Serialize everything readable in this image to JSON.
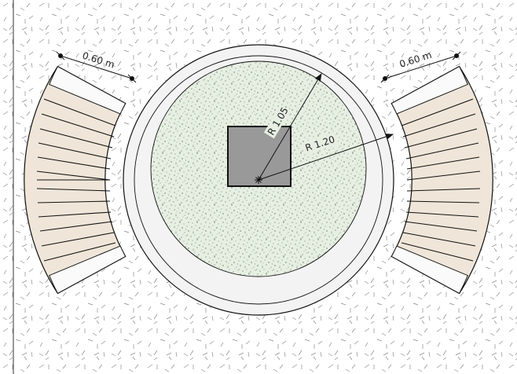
{
  "drawing": {
    "dimensions": {
      "width_left": "0.60 m",
      "width_right": "0.60 m",
      "inner_radius": "R 1.05",
      "outer_radius": "R 1.20"
    },
    "colors": {
      "background": "#ffffff",
      "ground_hatch": "#8a8a8a",
      "ring": "#f3f3f3",
      "inner_circle": "#e6efe2",
      "speckle": "#5f6f5a",
      "column": "#999999",
      "tread": "#efe6d9",
      "stroke": "#111111"
    },
    "icons": {
      "center_mark": "asterisk-center-icon",
      "dimension_ends": "dimension-dot-icon",
      "arrow": "arrowhead-icon"
    }
  }
}
